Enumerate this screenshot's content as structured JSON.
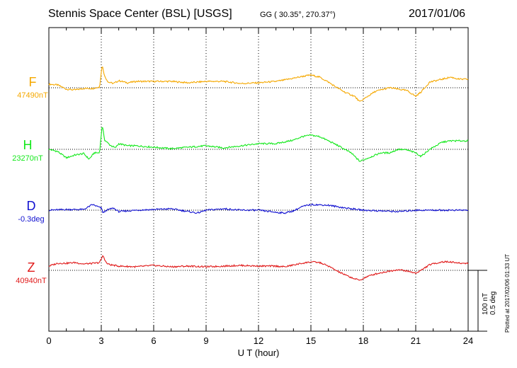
{
  "header": {
    "station": "Stennis Space Center (BSL)  [USGS]",
    "coords": "GG ( 30.35°, 270.37°)",
    "date": "2017/01/06"
  },
  "footer_note": "Plotted at 2017/02/06 01:33 UT",
  "scale": {
    "line1": "100 nT",
    "line2": "0.5 deg"
  },
  "colors": {
    "F": "#f5a800",
    "H": "#12e81a",
    "D": "#1010d0",
    "Z": "#e01818"
  },
  "chart_data": {
    "type": "line",
    "xlabel": "U T (hour)",
    "xlim": [
      0,
      24
    ],
    "xticks": [
      "0",
      "3",
      "6",
      "9",
      "12",
      "15",
      "18",
      "21",
      "24"
    ],
    "grid": "dotted vertical every 3 hours; dotted baseline per trace",
    "series": [
      {
        "name": "F",
        "baseline_label": "47490nT",
        "color": "#f5a800",
        "x": [
          0,
          0.5,
          1.0,
          1.5,
          2.0,
          2.5,
          2.9,
          3.05,
          3.2,
          3.4,
          3.7,
          4.0,
          4.5,
          5.0,
          6.0,
          7.0,
          8.0,
          9.0,
          10.0,
          11.0,
          12.0,
          13.0,
          13.5,
          14.5,
          15.0,
          15.5,
          16.0,
          16.5,
          17.0,
          17.5,
          17.8,
          18.2,
          18.7,
          19.5,
          20.0,
          20.5,
          21.0,
          21.3,
          21.8,
          22.5,
          23.0,
          23.5,
          24.0
        ],
        "y": [
          5,
          4,
          -2,
          -3,
          -1,
          -1,
          1,
          32,
          16,
          8,
          6,
          10,
          7,
          9,
          9,
          9,
          7,
          9,
          9,
          6,
          7,
          9,
          11,
          16,
          18,
          15,
          8,
          0,
          -7,
          -12,
          -20,
          -13,
          -5,
          0,
          -2,
          -4,
          -12,
          -6,
          8,
          12,
          15,
          12,
          12
        ]
      },
      {
        "name": "H",
        "baseline_label": "23270nT",
        "color": "#12e81a",
        "x": [
          0,
          0.5,
          1.0,
          1.5,
          2.0,
          2.3,
          2.6,
          2.9,
          3.05,
          3.2,
          3.5,
          3.8,
          4.0,
          4.5,
          5.0,
          6.0,
          7.0,
          8.0,
          9.0,
          10.0,
          11.0,
          12.0,
          13.0,
          14.0,
          14.5,
          15.0,
          15.5,
          16.0,
          16.5,
          17.0,
          17.3,
          17.8,
          18.3,
          19.0,
          19.5,
          20.0,
          20.5,
          21.0,
          21.3,
          21.8,
          22.5,
          23.0,
          24.0
        ],
        "y": [
          0,
          -3,
          -12,
          -8,
          -6,
          -14,
          -5,
          -5,
          34,
          13,
          6,
          2,
          8,
          5,
          5,
          3,
          1,
          3,
          5,
          2,
          5,
          8,
          8,
          13,
          18,
          20,
          18,
          12,
          6,
          -1,
          -5,
          -17,
          -12,
          -5,
          -5,
          0,
          -1,
          -5,
          -10,
          0,
          10,
          12,
          12
        ]
      },
      {
        "name": "D",
        "baseline_label": "-0.3deg",
        "color": "#1010d0",
        "x": [
          0,
          1.0,
          2.0,
          2.5,
          3.0,
          3.1,
          3.3,
          3.7,
          4.0,
          5.0,
          6.0,
          7.0,
          8.0,
          8.5,
          9.0,
          10.0,
          11.0,
          12.0,
          13.0,
          13.5,
          14.0,
          14.5,
          15.0,
          16.0,
          16.5,
          17.0,
          18.0,
          19.0,
          20.0,
          21.0,
          22.0,
          23.0,
          24.0
        ],
        "y": [
          0,
          1,
          1,
          8,
          3,
          -4,
          0,
          3,
          -2,
          0,
          1,
          2,
          -2,
          -4,
          0,
          2,
          0,
          0,
          -3,
          -4,
          -1,
          5,
          8,
          7,
          5,
          3,
          0,
          -1,
          -2,
          0,
          0,
          0,
          0
        ]
      },
      {
        "name": "Z",
        "baseline_label": "40940nT",
        "color": "#e01818",
        "x": [
          0,
          0.5,
          1.0,
          1.5,
          2.0,
          2.6,
          2.9,
          3.1,
          3.3,
          3.5,
          4.0,
          5.0,
          6.0,
          7.0,
          8.0,
          9.0,
          10.0,
          11.0,
          12.0,
          13.0,
          13.5,
          14.5,
          15.0,
          15.5,
          16.0,
          16.5,
          17.0,
          17.5,
          17.8,
          18.2,
          18.7,
          19.5,
          20.0,
          20.5,
          21.0,
          21.3,
          21.8,
          22.5,
          23.0,
          23.5,
          24.0
        ],
        "y": [
          6,
          10,
          10,
          11,
          9,
          10,
          11,
          21,
          10,
          8,
          6,
          5,
          7,
          5,
          6,
          5,
          6,
          7,
          6,
          6,
          5,
          10,
          12,
          11,
          6,
          -1,
          -7,
          -12,
          -14,
          -9,
          -5,
          -1,
          1,
          -1,
          -4,
          0,
          8,
          12,
          12,
          10,
          10
        ]
      }
    ]
  }
}
